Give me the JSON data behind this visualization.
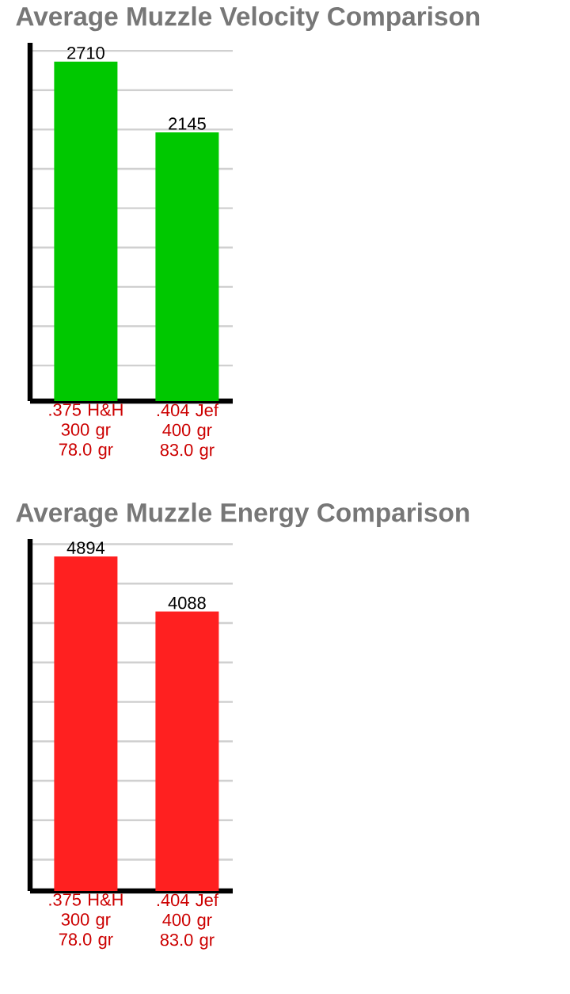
{
  "chart_data": [
    {
      "type": "bar",
      "title": "Average Muzzle Velocity Comparison",
      "categories": [
        ".375 H&H 300 gr 78.0 gr",
        ".404 Jef 400 gr 83.0 gr"
      ],
      "values": [
        2710,
        2145
      ],
      "color": "#00c800",
      "ylim": [
        0,
        2860
      ],
      "yticks": [
        {
          "value": 284,
          "label": null
        },
        {
          "value": 598,
          "label": null
        },
        {
          "value": 912,
          "label": null
        },
        {
          "value": 1226,
          "label": null
        },
        {
          "value": 1540,
          "label": null
        },
        {
          "value": 1854,
          "label": null
        },
        {
          "value": 2168,
          "label": null
        },
        {
          "value": 2482,
          "label": null
        },
        {
          "value": 2796,
          "label": null
        }
      ],
      "grid": "y",
      "data_labels": true,
      "tick_labels": "x"
    },
    {
      "type": "bar",
      "title": "Average Muzzle Energy Comparison",
      "categories": [
        ".375 H&H 300 gr 78.0 gr",
        ".404 Jef 400 gr 83.0 gr"
      ],
      "values": [
        4894,
        4088
      ],
      "color": "#ff2020",
      "ylim": [
        0,
        5150
      ],
      "yticks": [
        {
          "value": 458,
          "label": null
        },
        {
          "value": 1035,
          "label": null
        },
        {
          "value": 1612,
          "label": null
        },
        {
          "value": 2189,
          "label": null
        },
        {
          "value": 2766,
          "label": null
        },
        {
          "value": 3343,
          "label": null
        },
        {
          "value": 3920,
          "label": null
        },
        {
          "value": 4497,
          "label": null
        },
        {
          "value": 5074,
          "label": null
        }
      ],
      "grid": "y",
      "data_labels": true,
      "tick_labels": "x"
    }
  ]
}
